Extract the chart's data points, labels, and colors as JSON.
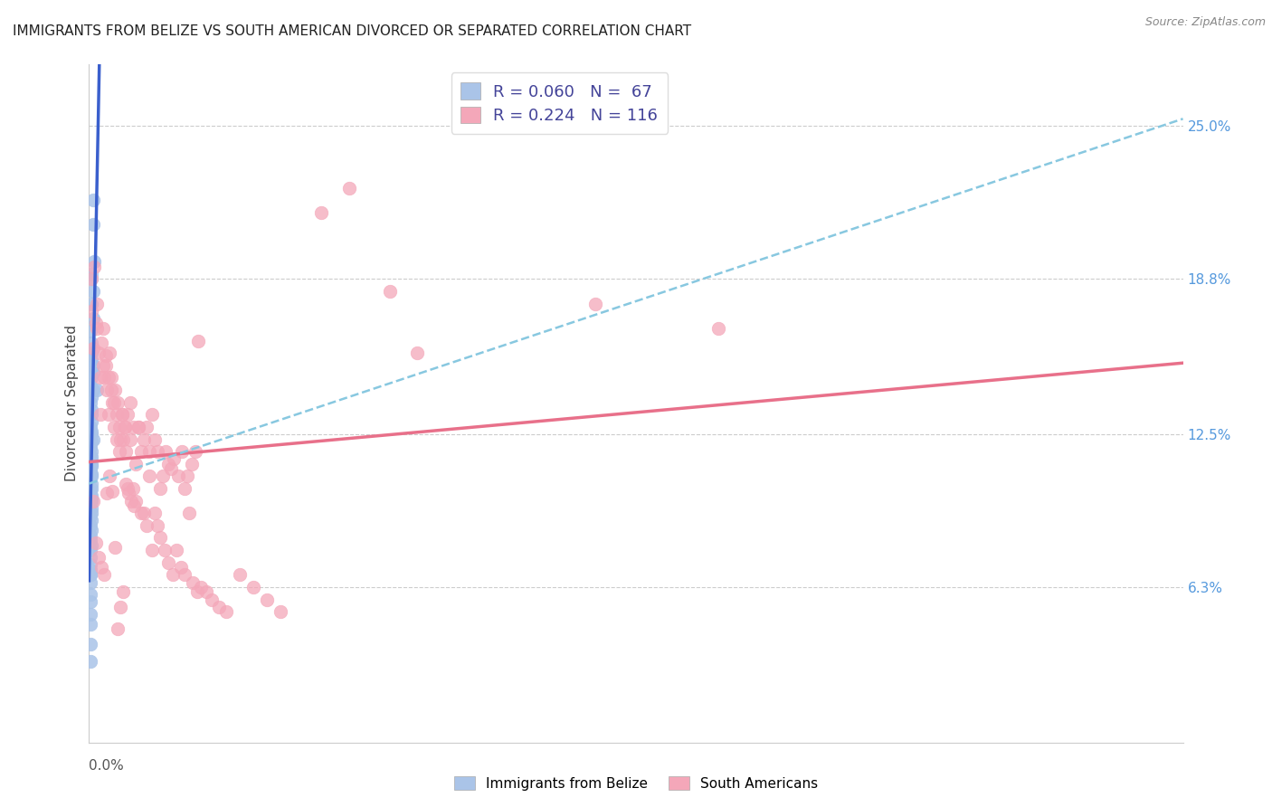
{
  "title": "IMMIGRANTS FROM BELIZE VS SOUTH AMERICAN DIVORCED OR SEPARATED CORRELATION CHART",
  "source": "Source: ZipAtlas.com",
  "ylabel": "Divorced or Separated",
  "ytick_vals": [
    0.063,
    0.125,
    0.188,
    0.25
  ],
  "ytick_labels": [
    "6.3%",
    "12.5%",
    "18.8%",
    "25.0%"
  ],
  "xmin": 0.0,
  "xmax": 0.8,
  "ymin": 0.0,
  "ymax": 0.275,
  "legend_r1": "0.060",
  "legend_n1": "67",
  "legend_r2": "0.224",
  "legend_n2": "116",
  "belize_color": "#aac4e8",
  "south_color": "#f4a7b9",
  "belize_line_color": "#3a5fcd",
  "south_line_color": "#e8708a",
  "dashed_line_color": "#88c8e0",
  "legend_label1": "Immigrants from Belize",
  "legend_label2": "South Americans",
  "belize_x": [
    0.003,
    0.003,
    0.004,
    0.002,
    0.002,
    0.003,
    0.002,
    0.003,
    0.001,
    0.002,
    0.002,
    0.002,
    0.003,
    0.003,
    0.002,
    0.001,
    0.003,
    0.002,
    0.001,
    0.002,
    0.002,
    0.002,
    0.001,
    0.002,
    0.002,
    0.003,
    0.002,
    0.001,
    0.002,
    0.002,
    0.001,
    0.002,
    0.002,
    0.001,
    0.002,
    0.002,
    0.001,
    0.002,
    0.002,
    0.001,
    0.002,
    0.002,
    0.002,
    0.001,
    0.002,
    0.002,
    0.006,
    0.001,
    0.002,
    0.001,
    0.002,
    0.001,
    0.001,
    0.002,
    0.001,
    0.001,
    0.001,
    0.001,
    0.001,
    0.001,
    0.001,
    0.001,
    0.001,
    0.001,
    0.001,
    0.001,
    0.001
  ],
  "belize_y": [
    0.22,
    0.21,
    0.195,
    0.19,
    0.188,
    0.183,
    0.178,
    0.172,
    0.167,
    0.162,
    0.158,
    0.155,
    0.153,
    0.15,
    0.148,
    0.145,
    0.143,
    0.14,
    0.138,
    0.135,
    0.133,
    0.13,
    0.128,
    0.126,
    0.125,
    0.123,
    0.122,
    0.12,
    0.118,
    0.116,
    0.115,
    0.113,
    0.112,
    0.11,
    0.109,
    0.108,
    0.107,
    0.105,
    0.103,
    0.102,
    0.1,
    0.099,
    0.098,
    0.097,
    0.095,
    0.093,
    0.143,
    0.092,
    0.09,
    0.088,
    0.086,
    0.084,
    0.082,
    0.08,
    0.078,
    0.075,
    0.072,
    0.07,
    0.068,
    0.065,
    0.06,
    0.057,
    0.052,
    0.048,
    0.04,
    0.033,
    0.068
  ],
  "south_x": [
    0.002,
    0.003,
    0.005,
    0.006,
    0.007,
    0.008,
    0.009,
    0.01,
    0.011,
    0.012,
    0.013,
    0.014,
    0.015,
    0.016,
    0.017,
    0.018,
    0.019,
    0.02,
    0.021,
    0.022,
    0.023,
    0.024,
    0.025,
    0.026,
    0.027,
    0.028,
    0.03,
    0.032,
    0.034,
    0.036,
    0.038,
    0.04,
    0.042,
    0.044,
    0.046,
    0.048,
    0.05,
    0.052,
    0.054,
    0.056,
    0.058,
    0.06,
    0.062,
    0.065,
    0.068,
    0.07,
    0.072,
    0.075,
    0.078,
    0.08,
    0.002,
    0.004,
    0.006,
    0.008,
    0.01,
    0.012,
    0.014,
    0.016,
    0.018,
    0.02,
    0.022,
    0.024,
    0.026,
    0.028,
    0.03,
    0.032,
    0.034,
    0.036,
    0.038,
    0.04,
    0.042,
    0.044,
    0.046,
    0.048,
    0.05,
    0.052,
    0.055,
    0.058,
    0.061,
    0.064,
    0.067,
    0.07,
    0.073,
    0.076,
    0.079,
    0.082,
    0.086,
    0.09,
    0.095,
    0.1,
    0.11,
    0.12,
    0.13,
    0.14,
    0.17,
    0.19,
    0.22,
    0.37,
    0.46,
    0.24,
    0.003,
    0.005,
    0.007,
    0.009,
    0.011,
    0.013,
    0.015,
    0.017,
    0.019,
    0.021,
    0.023,
    0.025,
    0.027,
    0.029,
    0.031,
    0.033
  ],
  "south_y": [
    0.175,
    0.16,
    0.17,
    0.178,
    0.158,
    0.148,
    0.162,
    0.153,
    0.148,
    0.157,
    0.143,
    0.133,
    0.158,
    0.148,
    0.138,
    0.128,
    0.143,
    0.133,
    0.138,
    0.128,
    0.123,
    0.133,
    0.123,
    0.128,
    0.118,
    0.133,
    0.138,
    0.128,
    0.113,
    0.128,
    0.118,
    0.123,
    0.128,
    0.118,
    0.133,
    0.123,
    0.118,
    0.103,
    0.108,
    0.118,
    0.113,
    0.111,
    0.115,
    0.108,
    0.118,
    0.103,
    0.108,
    0.113,
    0.118,
    0.163,
    0.188,
    0.193,
    0.168,
    0.133,
    0.168,
    0.153,
    0.148,
    0.143,
    0.138,
    0.123,
    0.118,
    0.133,
    0.128,
    0.103,
    0.123,
    0.103,
    0.098,
    0.128,
    0.093,
    0.093,
    0.088,
    0.108,
    0.078,
    0.093,
    0.088,
    0.083,
    0.078,
    0.073,
    0.068,
    0.078,
    0.071,
    0.068,
    0.093,
    0.065,
    0.061,
    0.063,
    0.061,
    0.058,
    0.055,
    0.053,
    0.068,
    0.063,
    0.058,
    0.053,
    0.215,
    0.225,
    0.183,
    0.178,
    0.168,
    0.158,
    0.098,
    0.081,
    0.075,
    0.071,
    0.068,
    0.101,
    0.108,
    0.102,
    0.079,
    0.046,
    0.055,
    0.061,
    0.105,
    0.101,
    0.098,
    0.096
  ],
  "dashed_intercept": 0.105,
  "dashed_slope": 0.185
}
